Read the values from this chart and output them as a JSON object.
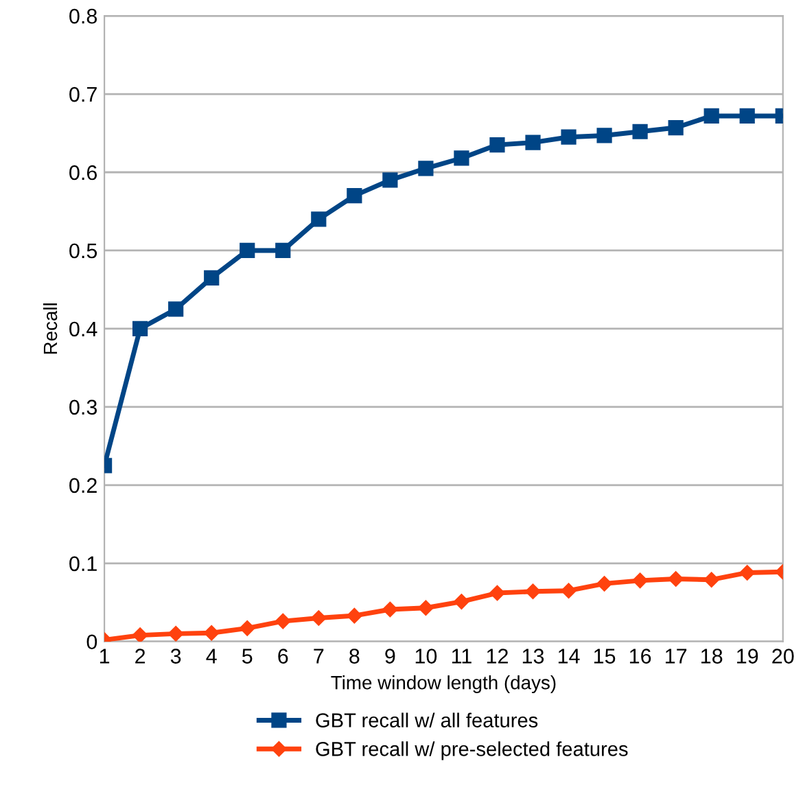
{
  "chart_data": {
    "type": "line",
    "xlabel": "Time window length (days)",
    "ylabel": "Recall",
    "x": [
      1,
      2,
      3,
      4,
      5,
      6,
      7,
      8,
      9,
      10,
      11,
      12,
      13,
      14,
      15,
      16,
      17,
      18,
      19,
      20
    ],
    "series": [
      {
        "name": "GBT recall w/ all features",
        "color": "#004586",
        "marker": "square",
        "values": [
          0.225,
          0.4,
          0.425,
          0.465,
          0.5,
          0.5,
          0.54,
          0.57,
          0.59,
          0.605,
          0.618,
          0.635,
          0.638,
          0.645,
          0.647,
          0.652,
          0.657,
          0.672,
          0.672,
          0.672
        ]
      },
      {
        "name": "GBT recall w/ pre-selected features",
        "color": "#ff420e",
        "marker": "diamond",
        "values": [
          0.002,
          0.008,
          0.01,
          0.011,
          0.017,
          0.026,
          0.03,
          0.033,
          0.041,
          0.043,
          0.051,
          0.062,
          0.064,
          0.065,
          0.074,
          0.078,
          0.08,
          0.079,
          0.088,
          0.089
        ]
      }
    ],
    "xlim": [
      1,
      20
    ],
    "xticks": [
      1,
      2,
      3,
      4,
      5,
      6,
      7,
      8,
      9,
      10,
      11,
      12,
      13,
      14,
      15,
      16,
      17,
      18,
      19,
      20
    ],
    "ylim": [
      0,
      0.8
    ],
    "yticks": [
      0,
      0.1,
      0.2,
      0.3,
      0.4,
      0.5,
      0.6,
      0.7,
      0.8
    ],
    "grid": "y",
    "legend": "bottom",
    "line_style": "solid"
  }
}
